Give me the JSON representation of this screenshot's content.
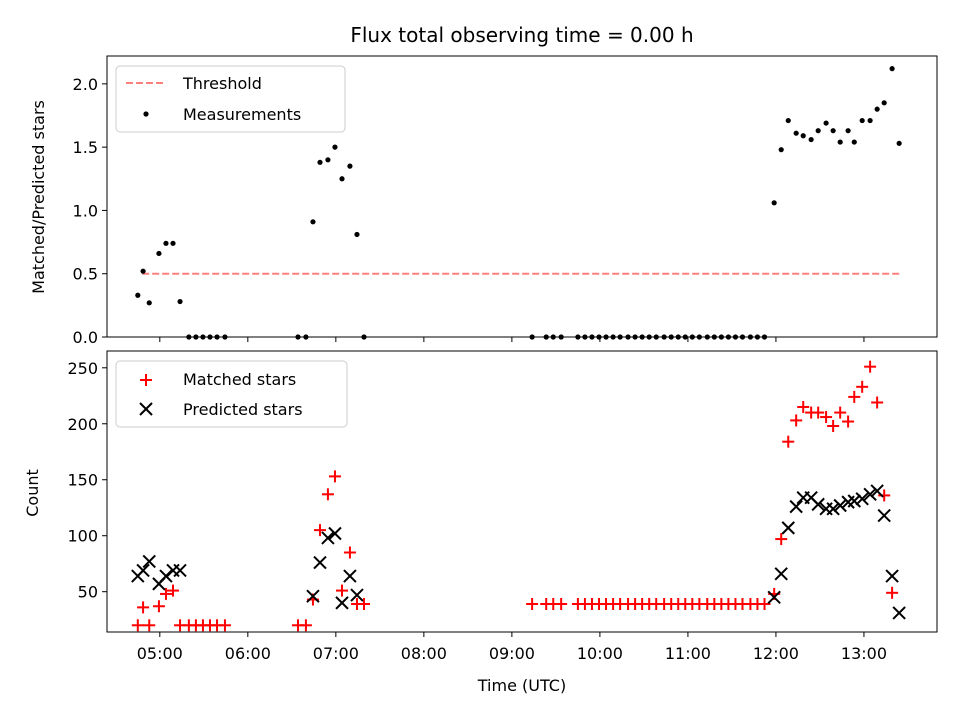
{
  "chart_data": [
    {
      "type": "scatter",
      "title": "Flux total observing time = 0.00 h",
      "xlabel": "",
      "ylabel": "Matched/Predicted stars",
      "x_unit": "hours UTC",
      "xlim": [
        4.4,
        13.83
      ],
      "ylim": [
        0.0,
        2.22
      ],
      "yticks": [
        0.0,
        0.5,
        1.0,
        1.5,
        2.0
      ],
      "ytick_labels": [
        "0.0",
        "0.5",
        "1.0",
        "1.5",
        "2.0"
      ],
      "legend_position": "top-left",
      "threshold": {
        "name": "Threshold",
        "color": "#ff7f7f",
        "value": 0.5,
        "x": [
          4.8,
          13.42
        ]
      },
      "series": [
        {
          "name": "Measurements",
          "color": "#000000",
          "points": [
            [
              4.75,
              0.33
            ],
            [
              4.81,
              0.52
            ],
            [
              4.88,
              0.27
            ],
            [
              4.99,
              0.66
            ],
            [
              5.07,
              0.74
            ],
            [
              5.15,
              0.74
            ],
            [
              5.23,
              0.28
            ],
            [
              5.33,
              0.0
            ],
            [
              5.41,
              0.0
            ],
            [
              5.49,
              0.0
            ],
            [
              5.57,
              0.0
            ],
            [
              5.65,
              0.0
            ],
            [
              5.74,
              0.0
            ],
            [
              6.57,
              0.0
            ],
            [
              6.66,
              0.0
            ],
            [
              6.74,
              0.91
            ],
            [
              6.82,
              1.38
            ],
            [
              6.91,
              1.4
            ],
            [
              6.99,
              1.5
            ],
            [
              7.07,
              1.25
            ],
            [
              7.16,
              1.35
            ],
            [
              7.24,
              0.81
            ],
            [
              7.32,
              0.0
            ],
            [
              9.23,
              0.0
            ],
            [
              9.39,
              0.0
            ],
            [
              9.47,
              0.0
            ],
            [
              9.56,
              0.0
            ],
            [
              9.75,
              0.0
            ],
            [
              9.83,
              0.0
            ],
            [
              9.91,
              0.0
            ],
            [
              9.99,
              0.0
            ],
            [
              10.07,
              0.0
            ],
            [
              10.15,
              0.0
            ],
            [
              10.23,
              0.0
            ],
            [
              10.32,
              0.0
            ],
            [
              10.4,
              0.0
            ],
            [
              10.48,
              0.0
            ],
            [
              10.56,
              0.0
            ],
            [
              10.64,
              0.0
            ],
            [
              10.73,
              0.0
            ],
            [
              10.81,
              0.0
            ],
            [
              10.89,
              0.0
            ],
            [
              10.97,
              0.0
            ],
            [
              11.05,
              0.0
            ],
            [
              11.13,
              0.0
            ],
            [
              11.22,
              0.0
            ],
            [
              11.3,
              0.0
            ],
            [
              11.38,
              0.0
            ],
            [
              11.46,
              0.0
            ],
            [
              11.54,
              0.0
            ],
            [
              11.62,
              0.0
            ],
            [
              11.71,
              0.0
            ],
            [
              11.79,
              0.0
            ],
            [
              11.87,
              0.0
            ],
            [
              11.98,
              1.06
            ],
            [
              12.06,
              1.48
            ],
            [
              12.14,
              1.71
            ],
            [
              12.23,
              1.61
            ],
            [
              12.31,
              1.59
            ],
            [
              12.4,
              1.56
            ],
            [
              12.48,
              1.63
            ],
            [
              12.57,
              1.69
            ],
            [
              12.65,
              1.63
            ],
            [
              12.73,
              1.54
            ],
            [
              12.82,
              1.63
            ],
            [
              12.89,
              1.54
            ],
            [
              12.98,
              1.71
            ],
            [
              13.07,
              1.71
            ],
            [
              13.15,
              1.8
            ],
            [
              13.23,
              1.85
            ],
            [
              13.32,
              2.12
            ],
            [
              13.4,
              1.53
            ]
          ]
        }
      ]
    },
    {
      "type": "scatter",
      "title": "",
      "xlabel": "Time (UTC)",
      "ylabel": "Count",
      "x_unit": "hours UTC",
      "xlim": [
        4.4,
        13.83
      ],
      "ylim": [
        14,
        265
      ],
      "yticks": [
        50,
        100,
        150,
        200,
        250
      ],
      "ytick_labels": [
        "50",
        "100",
        "150",
        "200",
        "250"
      ],
      "xticks": [
        5,
        6,
        7,
        8,
        9,
        10,
        11,
        12,
        13
      ],
      "xtick_labels": [
        "05:00",
        "06:00",
        "07:00",
        "08:00",
        "09:00",
        "10:00",
        "11:00",
        "12:00",
        "13:00"
      ],
      "legend_position": "top-left",
      "series": [
        {
          "name": "Matched stars",
          "color": "#ff0000",
          "marker": "plus",
          "points": [
            [
              4.75,
              20
            ],
            [
              4.81,
              36
            ],
            [
              4.88,
              20
            ],
            [
              4.99,
              37
            ],
            [
              5.07,
              48
            ],
            [
              5.15,
              51
            ],
            [
              5.23,
              20
            ],
            [
              5.33,
              20
            ],
            [
              5.41,
              20
            ],
            [
              5.49,
              20
            ],
            [
              5.57,
              20
            ],
            [
              5.65,
              20
            ],
            [
              5.74,
              20
            ],
            [
              6.57,
              20
            ],
            [
              6.66,
              20
            ],
            [
              6.74,
              43
            ],
            [
              6.82,
              105
            ],
            [
              6.91,
              137
            ],
            [
              6.99,
              153
            ],
            [
              7.07,
              51
            ],
            [
              7.16,
              85
            ],
            [
              7.24,
              39
            ],
            [
              7.32,
              39
            ],
            [
              9.23,
              39
            ],
            [
              9.39,
              39
            ],
            [
              9.47,
              39
            ],
            [
              9.56,
              39
            ],
            [
              9.75,
              39
            ],
            [
              9.83,
              39
            ],
            [
              9.91,
              39
            ],
            [
              9.99,
              39
            ],
            [
              10.07,
              39
            ],
            [
              10.15,
              39
            ],
            [
              10.23,
              39
            ],
            [
              10.32,
              39
            ],
            [
              10.4,
              39
            ],
            [
              10.48,
              39
            ],
            [
              10.56,
              39
            ],
            [
              10.64,
              39
            ],
            [
              10.73,
              39
            ],
            [
              10.81,
              39
            ],
            [
              10.89,
              39
            ],
            [
              10.97,
              39
            ],
            [
              11.05,
              39
            ],
            [
              11.13,
              39
            ],
            [
              11.22,
              39
            ],
            [
              11.3,
              39
            ],
            [
              11.38,
              39
            ],
            [
              11.46,
              39
            ],
            [
              11.54,
              39
            ],
            [
              11.62,
              39
            ],
            [
              11.71,
              39
            ],
            [
              11.79,
              39
            ],
            [
              11.87,
              39
            ],
            [
              11.98,
              48
            ],
            [
              12.06,
              97
            ],
            [
              12.14,
              184
            ],
            [
              12.23,
              203
            ],
            [
              12.31,
              215
            ],
            [
              12.4,
              210
            ],
            [
              12.48,
              210
            ],
            [
              12.57,
              206
            ],
            [
              12.65,
              198
            ],
            [
              12.73,
              210
            ],
            [
              12.82,
              202
            ],
            [
              12.89,
              224
            ],
            [
              12.98,
              233
            ],
            [
              13.07,
              251
            ],
            [
              13.15,
              219
            ],
            [
              13.23,
              136
            ],
            [
              13.32,
              49
            ]
          ]
        },
        {
          "name": "Predicted stars",
          "color": "#000000",
          "marker": "x",
          "points": [
            [
              4.75,
              64
            ],
            [
              4.81,
              69
            ],
            [
              4.88,
              77
            ],
            [
              4.99,
              57
            ],
            [
              5.07,
              64
            ],
            [
              5.15,
              69
            ],
            [
              5.23,
              69
            ],
            [
              6.74,
              46
            ],
            [
              6.82,
              76
            ],
            [
              6.91,
              98
            ],
            [
              6.99,
              102
            ],
            [
              7.07,
              40
            ],
            [
              7.16,
              64
            ],
            [
              7.24,
              47
            ],
            [
              11.98,
              45
            ],
            [
              12.06,
              66
            ],
            [
              12.14,
              107
            ],
            [
              12.23,
              126
            ],
            [
              12.31,
              134
            ],
            [
              12.4,
              134
            ],
            [
              12.48,
              128
            ],
            [
              12.57,
              124
            ],
            [
              12.65,
              124
            ],
            [
              12.73,
              127
            ],
            [
              12.82,
              130
            ],
            [
              12.89,
              131
            ],
            [
              12.98,
              133
            ],
            [
              13.07,
              137
            ],
            [
              13.15,
              140
            ],
            [
              13.23,
              118
            ],
            [
              13.32,
              64
            ],
            [
              13.4,
              31
            ]
          ]
        }
      ]
    }
  ]
}
